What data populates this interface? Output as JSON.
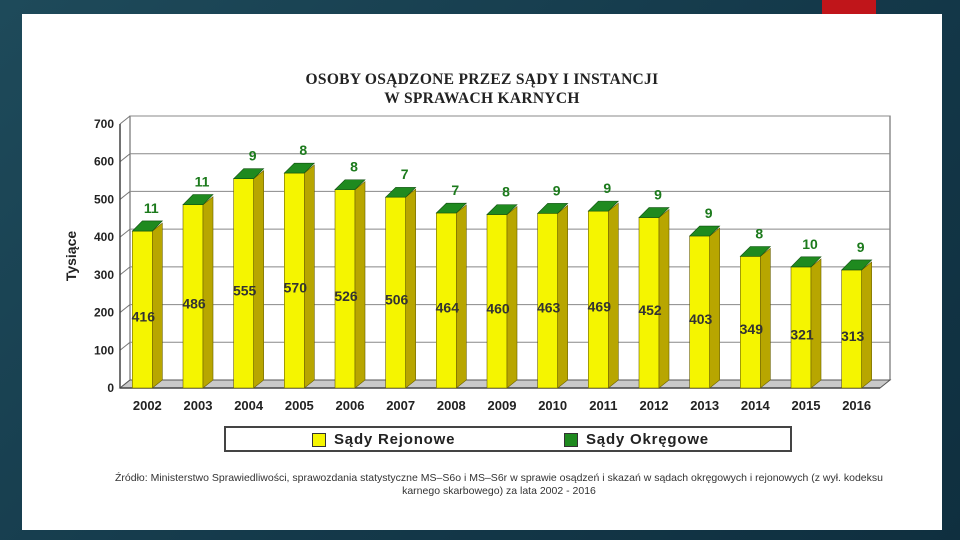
{
  "chart_data": {
    "type": "bar",
    "title_line1": "OSOBY OSĄDZONE PRZEZ SĄDY I INSTANCJI",
    "title_line2": "W SPRAWACH KARNYCH",
    "ylabel": "Tysiące",
    "xlabel": "",
    "ylim": [
      0,
      700
    ],
    "yticks": [
      0,
      100,
      200,
      300,
      400,
      500,
      600,
      700
    ],
    "grid": true,
    "legend_position": "bottom",
    "categories": [
      "2002",
      "2003",
      "2004",
      "2005",
      "2006",
      "2007",
      "2008",
      "2009",
      "2010",
      "2011",
      "2012",
      "2013",
      "2014",
      "2015",
      "2016"
    ],
    "series": [
      {
        "name": "Sądy Rejonowe",
        "color": "#f5f500",
        "side_color": "#b8a600",
        "values": [
          416,
          486,
          555,
          570,
          526,
          506,
          464,
          460,
          463,
          469,
          452,
          403,
          349,
          321,
          313
        ]
      },
      {
        "name": "Sądy Okręgowe",
        "color": "#1f8a1f",
        "values": [
          11,
          11,
          9,
          8,
          8,
          7,
          7,
          8,
          9,
          9,
          9,
          9,
          8,
          10,
          9
        ]
      }
    ],
    "label_color_okregowe": "#1c7a1c"
  },
  "source_text": "Źródło: Ministerstwo Sprawiedliwości, sprawozdania statystyczne MS–S6o i MS–S6r w sprawie osądzeń i skazań w sądach okręgowych i rejonowych (z wył. kodeksu karnego skarbowego) za lata 2002 - 2016"
}
